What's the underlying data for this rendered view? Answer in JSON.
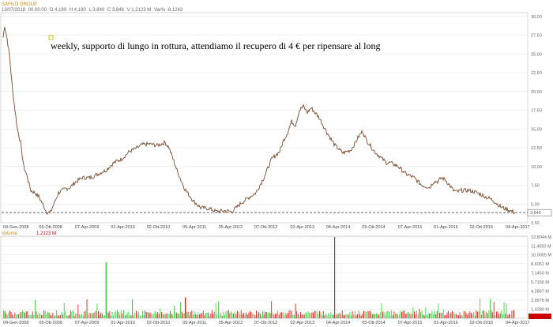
{
  "header": {
    "symbol": "SAFILO GROUP",
    "date": "13/07/2018",
    "time": "00.00.00",
    "open": "O 4,190",
    "high": "H 4,190",
    "low": "L 3,840",
    "close": "C 3,846",
    "volume": "V 1,2123 M",
    "var": "Var% -8,1243"
  },
  "annotation": "weekly, supporto di lungo in rottura, attendiamo il recupero di 4 € per ripensare al long",
  "colors": {
    "price_line": "#7a4a2e",
    "vol_up": "#3fd23f",
    "vol_down": "#e02020",
    "support": "#555555",
    "grid": "#e6e6e6"
  },
  "chart_data": [
    {
      "type": "line",
      "title": "SAFILO GROUP",
      "ylim": [
        2.5,
        30.5
      ],
      "y_ticks": [
        "30,00",
        "27,50",
        "25,00",
        "22,50",
        "20,00",
        "17,50",
        "15,00",
        "12,50",
        "10,00",
        "7,50",
        "5,00",
        "2,50"
      ],
      "last_value": "3,846",
      "support_level": 3.85,
      "x_ticks": [
        "04-Gen-2008",
        "05-Ott-2008",
        "07-Apr-2009",
        "01-Apr-2010",
        "02-Ott-2010",
        "05-Apr-2011",
        "05-Apr-2012",
        "07-Ott-2012",
        "02-Apr-2013",
        "04-Apr-2014",
        "05-Ott-2014",
        "07-Apr-2015",
        "01-Apr-2016",
        "02-Ott-2016",
        "04-Apr-2017"
      ],
      "series": [
        {
          "x": [
            0,
            2,
            5,
            8,
            12,
            15,
            18,
            22,
            26,
            30,
            35,
            40,
            45,
            50,
            55,
            60,
            70,
            78,
            85,
            90,
            100,
            110,
            120,
            130,
            140,
            150,
            160,
            170,
            176,
            185,
            195,
            205,
            210,
            215,
            220,
            225,
            230,
            240,
            250,
            260,
            270,
            280,
            290,
            300,
            310,
            320,
            330,
            340,
            350,
            355,
            360,
            365,
            370,
            375,
            380,
            385,
            390,
            400,
            410,
            420,
            430,
            440,
            445,
            450,
            455,
            460,
            470,
            475,
            480,
            485,
            490,
            500,
            510,
            520,
            530,
            540,
            545,
            550,
            555,
            560,
            570,
            575,
            580,
            590,
            600,
            610,
            620,
            630,
            640,
            648
          ],
          "y": [
            27.2,
            28.8,
            27.0,
            24.8,
            20.0,
            17.5,
            15.0,
            13.2,
            10.0,
            8.8,
            6.8,
            6.5,
            6.0,
            5.0,
            3.9,
            3.9,
            6.5,
            7.0,
            7.2,
            7.8,
            8.5,
            8.5,
            9.0,
            9.5,
            10.5,
            11.0,
            12.0,
            12.5,
            12.9,
            13.0,
            12.8,
            13.2,
            12.5,
            11.0,
            9.5,
            8.2,
            7.0,
            5.5,
            4.5,
            4.4,
            4.0,
            4.1,
            4.0,
            5.0,
            5.8,
            6.5,
            8.5,
            11.0,
            12.0,
            13.5,
            14.5,
            16.0,
            15.5,
            17.5,
            18.0,
            17.2,
            17.8,
            16.5,
            14.5,
            12.8,
            11.8,
            12.2,
            13.0,
            14.0,
            14.7,
            13.5,
            12.0,
            11.5,
            11.0,
            10.5,
            10.5,
            10.0,
            9.0,
            8.5,
            7.5,
            7.2,
            8.0,
            8.0,
            8.5,
            8.2,
            6.8,
            6.6,
            6.8,
            6.8,
            6.5,
            6.0,
            5.5,
            4.6,
            4.2,
            3.85
          ]
        }
      ]
    },
    {
      "type": "bar",
      "title": "Volume",
      "series_label": "Volume",
      "last_value": "1,2123 M",
      "y_ticks": [
        "12,8044 M",
        "11,4050 M",
        "10,0055 M",
        "8,6061 M",
        "7,1450 M",
        "5,7156 M",
        "4,2867 M",
        "2,8578 M",
        "1,4289 M"
      ],
      "ylim": [
        0,
        12.8044
      ],
      "notable_bars": [
        {
          "x": 130,
          "value": 8.8,
          "direction": "up"
        },
        {
          "x": 419,
          "value": 12.8,
          "direction": "down"
        },
        {
          "x": 163,
          "value": 3.0,
          "direction": "up"
        },
        {
          "x": 230,
          "value": 3.3,
          "direction": "down"
        }
      ]
    }
  ]
}
